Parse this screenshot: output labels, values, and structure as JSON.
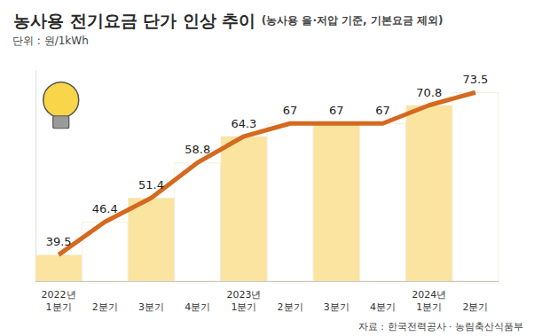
{
  "chart_data": {
    "type": "line",
    "title": "농사용 전기요금 단가 인상 추이",
    "subtitle": "(농사용 을·저압 기준, 기본요금 제외)",
    "annotations": [
      "단위 : 원/1kWh",
      "자료 : 한국전력공사 · 농림축산식품부"
    ],
    "categories": [
      "2022년\n1분기",
      "2분기",
      "3분기",
      "4분기",
      "2023년\n1분기",
      "2분기",
      "3분기",
      "4분기",
      "2024년\n1분기",
      "2분기"
    ],
    "values": [
      39.5,
      46.4,
      51.4,
      58.8,
      64.3,
      67,
      67,
      67,
      70.8,
      73.5
    ],
    "color": "#d4691f",
    "colors": [
      "#fbe3a0",
      "#ffffff",
      "#fbe3a0",
      "#ffffff",
      "#fbe3a0",
      "#ffffff",
      "#fbe3a0",
      "#ffffff",
      "#fbe3a0",
      "#ffffff"
    ],
    "ylim": [
      34,
      78
    ],
    "grid": false,
    "data_labels": true,
    "tick_labels": "x"
  }
}
